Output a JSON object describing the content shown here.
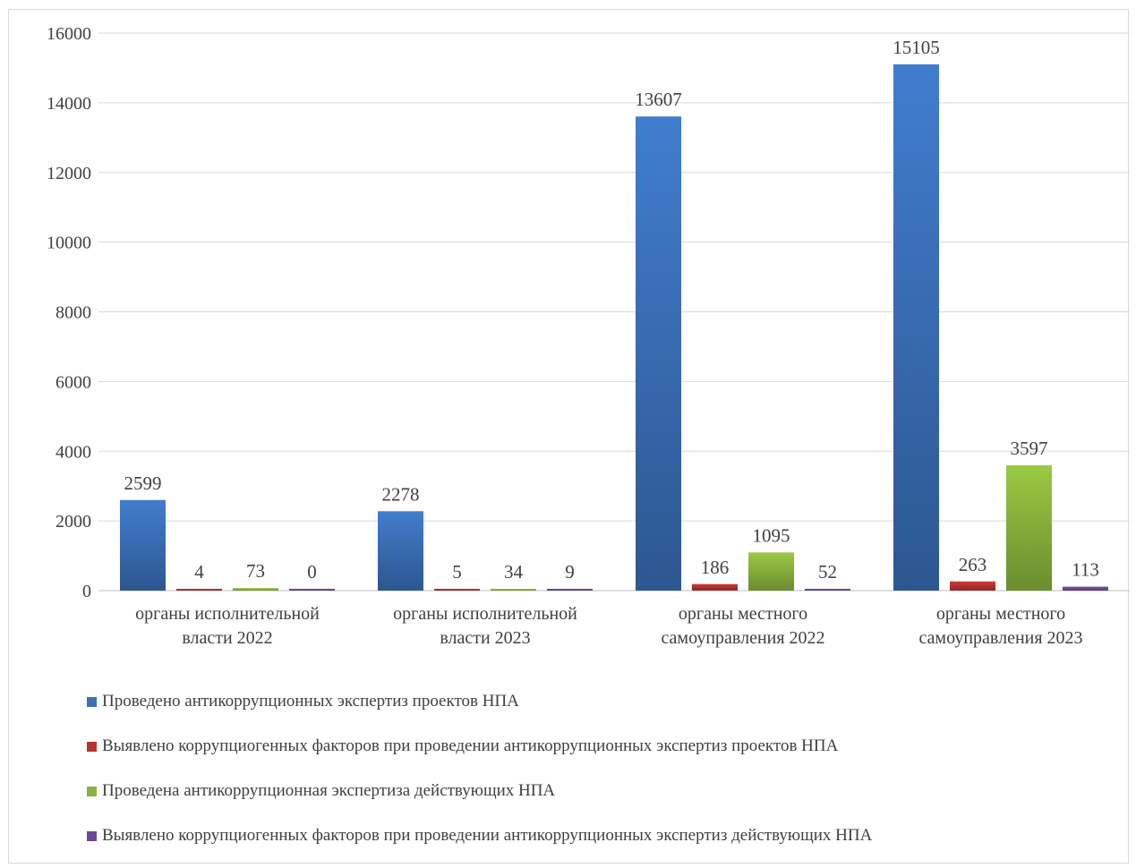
{
  "chart_data": {
    "type": "bar",
    "categories": [
      [
        "органы исполнительной",
        "власти 2022"
      ],
      [
        "органы исполнительной",
        "власти  2023"
      ],
      [
        "органы местного",
        "самоуправления 2022"
      ],
      [
        "органы местного",
        "самоуправления 2023"
      ]
    ],
    "series": [
      {
        "name": "Проведено антикоррупционных экспертиз проектов НПА",
        "values": [
          2599,
          2278,
          13607,
          15105
        ],
        "color": "#3a70b8"
      },
      {
        "name": "Выявлено коррупциогенных факторов при проведении антикоррупционных экспертиз проектов НПА",
        "values": [
          4,
          5,
          186,
          263
        ],
        "color": "#b83231"
      },
      {
        "name": "Проведена антикоррупционная экспертиза действующих НПА",
        "values": [
          73,
          34,
          1095,
          3597
        ],
        "color": "#8ab43c"
      },
      {
        "name": "Выявлено коррупциогенных факторов при проведении антикоррупционных экспертиз действующих НПА",
        "values": [
          0,
          9,
          52,
          113
        ],
        "color": "#6a4a98"
      }
    ],
    "ylim": [
      0,
      16000
    ],
    "yticks": [
      0,
      2000,
      4000,
      6000,
      8000,
      10000,
      12000,
      14000,
      16000
    ],
    "grid": true,
    "legend_position": "bottom",
    "data_labels": true
  }
}
